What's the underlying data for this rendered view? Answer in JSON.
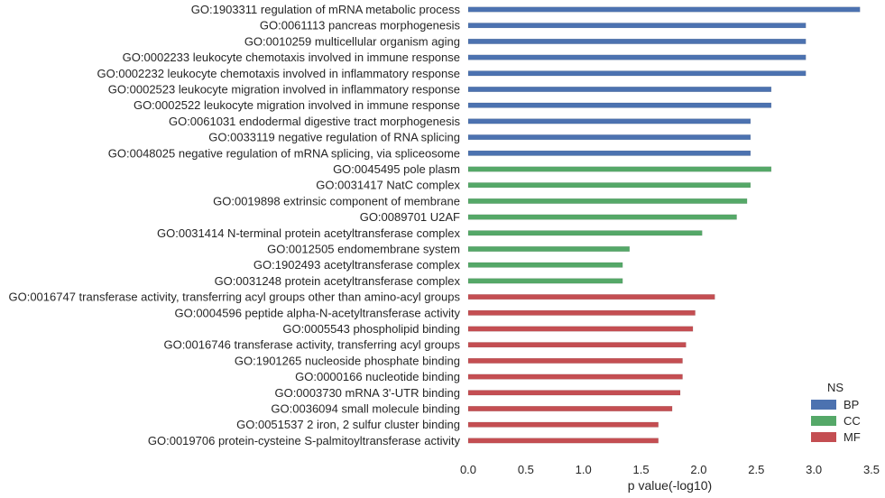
{
  "chart_data": {
    "type": "bar",
    "orientation": "horizontal",
    "xlabel": "p value(-log10)",
    "xlim": [
      0,
      3.5
    ],
    "xticks": [
      "0.0",
      "0.5",
      "1.0",
      "1.5",
      "2.0",
      "2.5",
      "3.0",
      "3.5"
    ],
    "grid": false,
    "legend": {
      "title": "NS",
      "placement": "lower-right",
      "entries": [
        {
          "name": "BP",
          "color": "#4c72b0"
        },
        {
          "name": "CC",
          "color": "#55a868"
        },
        {
          "name": "MF",
          "color": "#c44e52"
        }
      ]
    },
    "bars": [
      {
        "term": "GO:1903311 regulation of mRNA metabolic process",
        "value": 3.4,
        "ns": "BP"
      },
      {
        "term": "GO:0061113 pancreas morphogenesis",
        "value": 2.93,
        "ns": "BP"
      },
      {
        "term": "GO:0010259 multicellular organism aging",
        "value": 2.93,
        "ns": "BP"
      },
      {
        "term": "GO:0002233 leukocyte chemotaxis involved in immune response",
        "value": 2.93,
        "ns": "BP"
      },
      {
        "term": "GO:0002232 leukocyte chemotaxis involved in inflammatory response",
        "value": 2.93,
        "ns": "BP"
      },
      {
        "term": "GO:0002523 leukocyte migration involved in inflammatory response",
        "value": 2.63,
        "ns": "BP"
      },
      {
        "term": "GO:0002522 leukocyte migration involved in immune response",
        "value": 2.63,
        "ns": "BP"
      },
      {
        "term": "GO:0061031 endodermal digestive tract morphogenesis",
        "value": 2.45,
        "ns": "BP"
      },
      {
        "term": "GO:0033119 negative regulation of RNA splicing",
        "value": 2.45,
        "ns": "BP"
      },
      {
        "term": "GO:0048025 negative regulation of mRNA splicing, via spliceosome",
        "value": 2.45,
        "ns": "BP"
      },
      {
        "term": "GO:0045495 pole plasm",
        "value": 2.63,
        "ns": "CC"
      },
      {
        "term": "GO:0031417 NatC complex",
        "value": 2.45,
        "ns": "CC"
      },
      {
        "term": "GO:0019898 extrinsic component of membrane",
        "value": 2.42,
        "ns": "CC"
      },
      {
        "term": "GO:0089701 U2AF",
        "value": 2.33,
        "ns": "CC"
      },
      {
        "term": "GO:0031414 N-terminal protein acetyltransferase complex",
        "value": 2.03,
        "ns": "CC"
      },
      {
        "term": "GO:0012505 endomembrane system",
        "value": 1.4,
        "ns": "CC"
      },
      {
        "term": "GO:1902493 acetyltransferase complex",
        "value": 1.34,
        "ns": "CC"
      },
      {
        "term": "GO:0031248 protein acetyltransferase complex",
        "value": 1.34,
        "ns": "CC"
      },
      {
        "term": "GO:0016747 transferase activity, transferring acyl groups other than amino-acyl groups",
        "value": 2.14,
        "ns": "MF"
      },
      {
        "term": "GO:0004596 peptide alpha-N-acetyltransferase activity",
        "value": 1.97,
        "ns": "MF"
      },
      {
        "term": "GO:0005543 phospholipid binding",
        "value": 1.95,
        "ns": "MF"
      },
      {
        "term": "GO:0016746 transferase activity, transferring acyl groups",
        "value": 1.89,
        "ns": "MF"
      },
      {
        "term": "GO:1901265 nucleoside phosphate binding",
        "value": 1.86,
        "ns": "MF"
      },
      {
        "term": "GO:0000166 nucleotide binding",
        "value": 1.86,
        "ns": "MF"
      },
      {
        "term": "GO:0003730 mRNA 3'-UTR binding",
        "value": 1.84,
        "ns": "MF"
      },
      {
        "term": "GO:0036094 small molecule binding",
        "value": 1.77,
        "ns": "MF"
      },
      {
        "term": "GO:0051537 2 iron, 2 sulfur cluster binding",
        "value": 1.65,
        "ns": "MF"
      },
      {
        "term": "GO:0019706 protein-cysteine S-palmitoyltransferase activity",
        "value": 1.65,
        "ns": "MF"
      }
    ]
  }
}
